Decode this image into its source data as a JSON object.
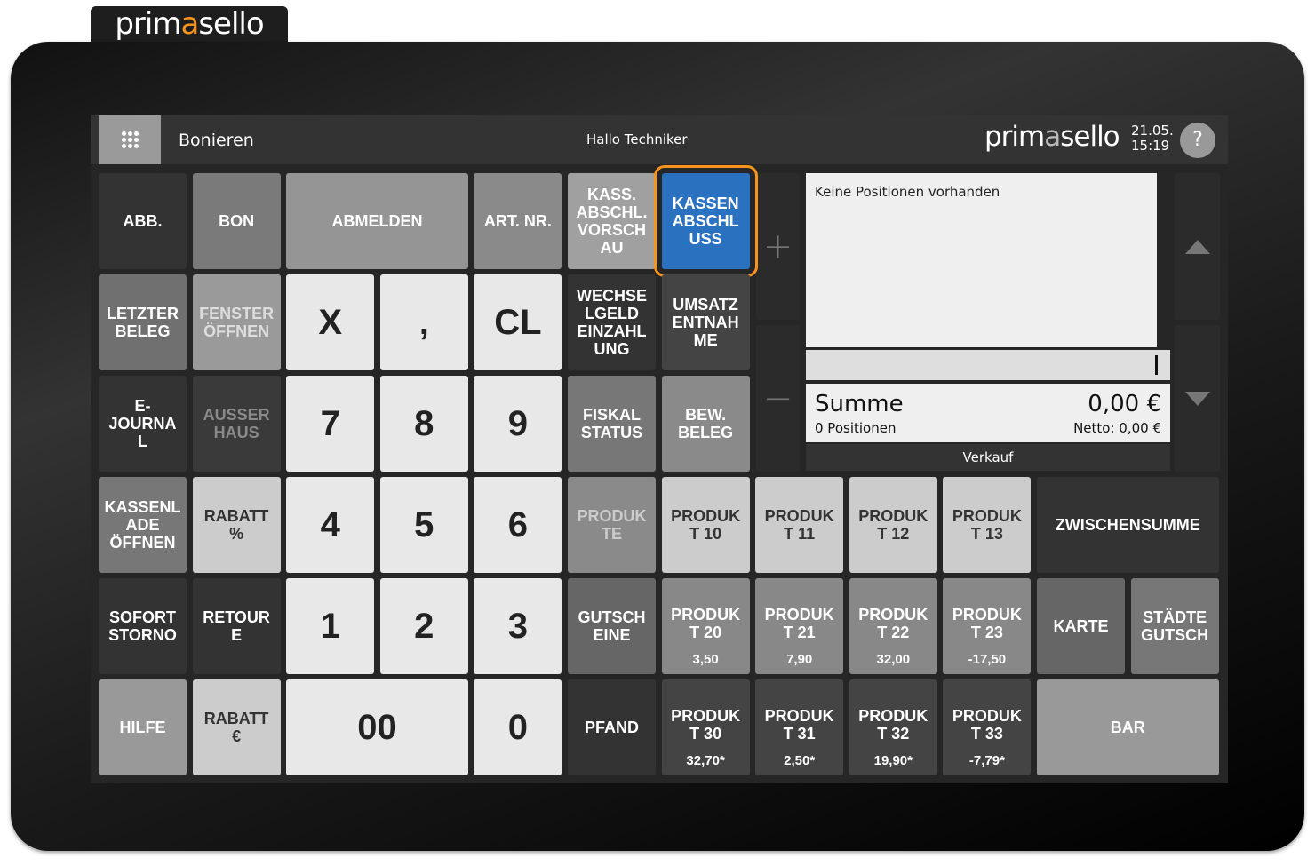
{
  "brand": {
    "logo_pre": "prim",
    "logo_mark": "a",
    "logo_post": "sello",
    "accent": "#f7941d"
  },
  "header": {
    "title": "Bonieren",
    "greeting": "Hallo Techniker",
    "date": "21.05.",
    "time": "15:19",
    "help_label": "?"
  },
  "receipt": {
    "empty_text": "Keine Positionen vorhanden",
    "sum_label": "Summe",
    "sum_value": "0,00 €",
    "positions": "0 Positionen",
    "netto": "Netto: 0,00 €",
    "mode": "Verkauf"
  },
  "side": {
    "plus": "+",
    "minus": "−"
  },
  "buttons": [
    {
      "id": "abb",
      "label": "ABB.",
      "bg": "#333333"
    },
    {
      "id": "bon",
      "label": "BON",
      "bg": "#7a7a7a"
    },
    {
      "id": "abmelden",
      "label": "ABMELDEN",
      "bg": "#959595"
    },
    {
      "id": "art-nr",
      "label": "ART. NR.",
      "bg": "#8a8a8a"
    },
    {
      "id": "kass-abschl-vorschau",
      "label": "KASS.\nABSCHL.\nVORSCH\nAU",
      "bg": "#a0a0a0"
    },
    {
      "id": "kassenabschluss",
      "label": "KASSEN\nABSCHL\nUSS",
      "bg": "#2a72c0",
      "selected": true
    },
    {
      "id": "letzter-beleg",
      "label": "LETZTER\nBELEG",
      "bg": "#707070"
    },
    {
      "id": "fenster-oeffnen",
      "label": "FENSTER\nÖFFNEN",
      "bg": "#9a9a9a",
      "fg": "#dddddd"
    },
    {
      "id": "key-x",
      "label": "X",
      "bg": "#e8e8e8",
      "num": true
    },
    {
      "id": "key-comma",
      "label": ",",
      "bg": "#e8e8e8",
      "num": true
    },
    {
      "id": "key-cl",
      "label": "CL",
      "bg": "#e8e8e8",
      "num": true
    },
    {
      "id": "wechselgeld",
      "label": "WECHSE\nLGELD\nEINZAHL\nUNG",
      "bg": "#333333"
    },
    {
      "id": "umsatzentnahme",
      "label": "UMSATZ\nENTNAH\nME",
      "bg": "#444444"
    },
    {
      "id": "e-journal",
      "label": "E-\nJOURNA\nL",
      "bg": "#333333"
    },
    {
      "id": "ausser-haus",
      "label": "AUSSER\nHAUS",
      "bg": "#3a3a3a",
      "fg": "#8a8a8a"
    },
    {
      "id": "key-7",
      "label": "7",
      "bg": "#e8e8e8",
      "num": true
    },
    {
      "id": "key-8",
      "label": "8",
      "bg": "#e8e8e8",
      "num": true
    },
    {
      "id": "key-9",
      "label": "9",
      "bg": "#e8e8e8",
      "num": true
    },
    {
      "id": "fiskal-status",
      "label": "FISKAL\nSTATUS",
      "bg": "#777777"
    },
    {
      "id": "bew-beleg",
      "label": "BEW.\nBELEG",
      "bg": "#8a8a8a"
    },
    {
      "id": "kassenlade-oeffnen",
      "label": "KASSENL\nADE\nÖFFNEN",
      "bg": "#777777"
    },
    {
      "id": "rabatt-prozent",
      "label": "RABATT\n%",
      "bg": "#cccccc",
      "fg": "#333333"
    },
    {
      "id": "key-4",
      "label": "4",
      "bg": "#e8e8e8",
      "num": true
    },
    {
      "id": "key-5",
      "label": "5",
      "bg": "#e8e8e8",
      "num": true
    },
    {
      "id": "key-6",
      "label": "6",
      "bg": "#e8e8e8",
      "num": true
    },
    {
      "id": "produkte",
      "label": "PRODUK\nTE",
      "bg": "#8a8a8a",
      "fg": "#cccccc"
    },
    {
      "id": "produkt-10",
      "label": "PRODUK\nT 10",
      "bg": "#cccccc",
      "fg": "#333333"
    },
    {
      "id": "produkt-11",
      "label": "PRODUK\nT 11",
      "bg": "#cccccc",
      "fg": "#333333"
    },
    {
      "id": "produkt-12",
      "label": "PRODUK\nT 12",
      "bg": "#cccccc",
      "fg": "#333333"
    },
    {
      "id": "produkt-13",
      "label": "PRODUK\nT 13",
      "bg": "#cccccc",
      "fg": "#333333"
    },
    {
      "id": "zwischensumme",
      "label": "ZWISCHENSUMME",
      "bg": "#333333"
    },
    {
      "id": "sofort-storno",
      "label": "SOFORT\nSTORNO",
      "bg": "#333333"
    },
    {
      "id": "retoure",
      "label": "RETOUR\nE",
      "bg": "#333333"
    },
    {
      "id": "key-1",
      "label": "1",
      "bg": "#e8e8e8",
      "num": true
    },
    {
      "id": "key-2",
      "label": "2",
      "bg": "#e8e8e8",
      "num": true
    },
    {
      "id": "key-3",
      "label": "3",
      "bg": "#e8e8e8",
      "num": true
    },
    {
      "id": "gutscheine",
      "label": "GUTSCH\nEINE",
      "bg": "#666666"
    },
    {
      "id": "produkt-20",
      "label": "PRODUK\nT 20",
      "price": "3,50",
      "bg": "#888888"
    },
    {
      "id": "produkt-21",
      "label": "PRODUK\nT 21",
      "price": "7,90",
      "bg": "#888888"
    },
    {
      "id": "produkt-22",
      "label": "PRODUK\nT 22",
      "price": "32,00",
      "bg": "#888888"
    },
    {
      "id": "produkt-23",
      "label": "PRODUK\nT 23",
      "price": "-17,50",
      "bg": "#888888"
    },
    {
      "id": "karte",
      "label": "KARTE",
      "bg": "#666666"
    },
    {
      "id": "staedtegutschein",
      "label": "STÄDTE\nGUTSCH",
      "bg": "#777777"
    },
    {
      "id": "hilfe",
      "label": "HILFE",
      "bg": "#999999"
    },
    {
      "id": "rabatt-euro",
      "label": "RABATT\n€",
      "bg": "#cccccc",
      "fg": "#333333"
    },
    {
      "id": "key-00",
      "label": "00",
      "bg": "#e8e8e8",
      "num": true
    },
    {
      "id": "key-0",
      "label": "0",
      "bg": "#e8e8e8",
      "num": true
    },
    {
      "id": "pfand",
      "label": "PFAND",
      "bg": "#333333"
    },
    {
      "id": "produkt-30",
      "label": "PRODUK\nT 30",
      "price": "32,70*",
      "bg": "#444444"
    },
    {
      "id": "produkt-31",
      "label": "PRODUK\nT 31",
      "price": "2,50*",
      "bg": "#444444"
    },
    {
      "id": "produkt-32",
      "label": "PRODUK\nT 32",
      "price": "19,90*",
      "bg": "#444444"
    },
    {
      "id": "produkt-33",
      "label": "PRODUK\nT 33",
      "price": "-7,79*",
      "bg": "#444444"
    },
    {
      "id": "bar",
      "label": "BAR",
      "bg": "#999999"
    }
  ]
}
